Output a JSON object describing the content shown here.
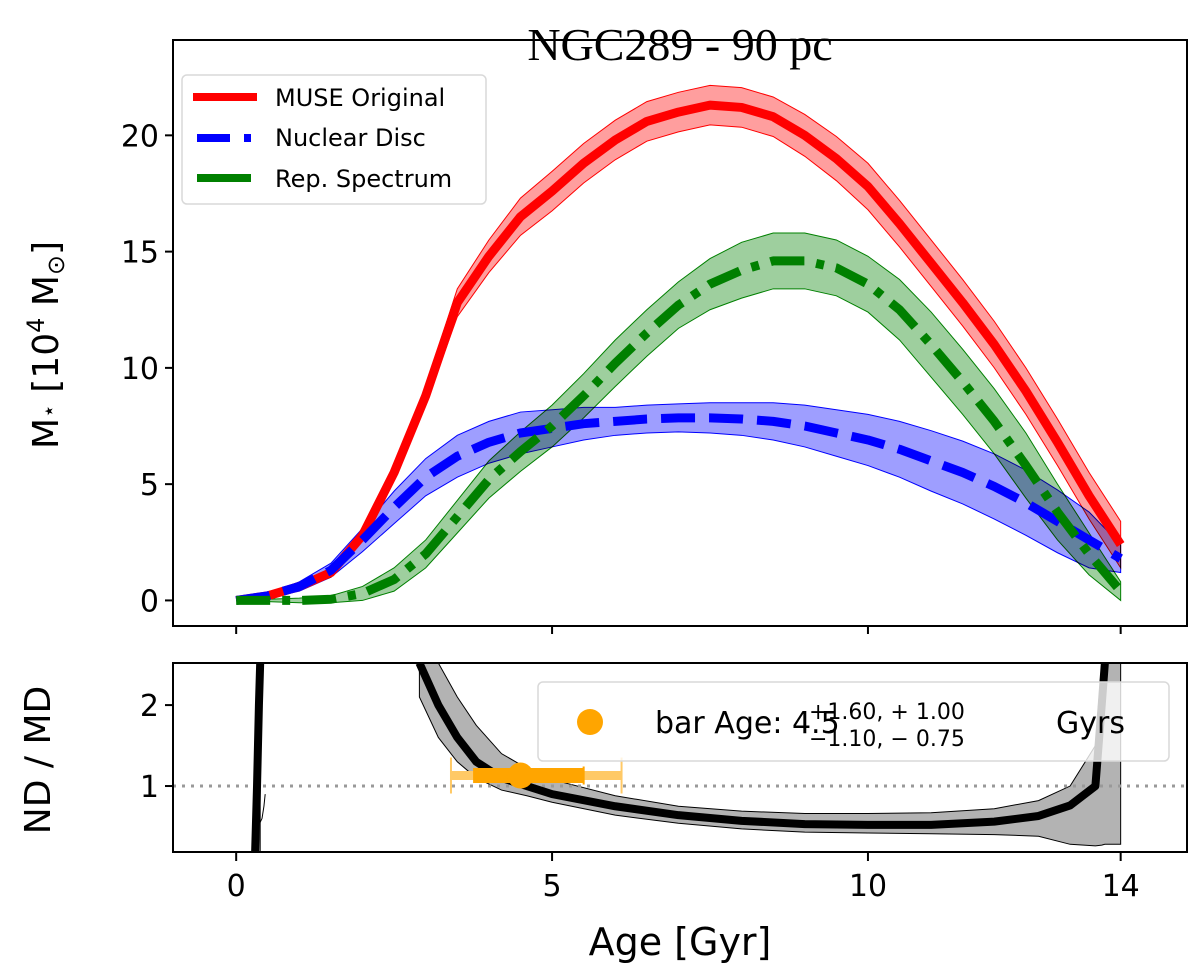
{
  "chart_data": [
    {
      "type": "line",
      "panel": "top",
      "title": "NGC289 - 90 pc",
      "xlabel": "",
      "ylabel": "M⋆ [10^4 M⊙]",
      "ylabel_parts": {
        "main": "M",
        "star": "⋆",
        "open": " [10",
        "exp": "4",
        "unit": " M",
        "sun": "⊙",
        "close": "]"
      },
      "xlim": [
        -1.0,
        15.05
      ],
      "ylim": [
        -1.1,
        24.1
      ],
      "yticks": [
        0,
        5,
        10,
        15,
        20
      ],
      "ytick_labels": [
        "0",
        "5",
        "10",
        "15",
        "20"
      ],
      "grid": false,
      "legend": {
        "placement": "top-left",
        "entries": [
          "MUSE Original",
          "Nuclear Disc",
          "Rep. Spectrum"
        ]
      },
      "x": [
        0,
        0.5,
        1,
        1.5,
        2,
        2.5,
        3,
        3.5,
        4,
        4.5,
        5,
        5.5,
        6,
        6.5,
        7,
        7.5,
        8,
        8.5,
        9,
        9.5,
        10,
        10.5,
        11,
        11.5,
        12,
        12.5,
        13,
        13.5,
        14
      ],
      "series": [
        {
          "name": "MUSE Original",
          "color": "#ff0000",
          "band_color": "#ff9999",
          "linestyle": "solid",
          "values": [
            0,
            0.2,
            0.6,
            1.2,
            2.8,
            5.5,
            8.8,
            12.8,
            14.8,
            16.5,
            17.6,
            18.8,
            19.8,
            20.6,
            21.0,
            21.3,
            21.2,
            20.8,
            20.0,
            19.0,
            17.8,
            16.2,
            14.5,
            12.8,
            11.0,
            9.0,
            6.8,
            4.5,
            2.4
          ],
          "err": [
            0,
            0.1,
            0.1,
            0.2,
            0.2,
            0.3,
            0.4,
            0.6,
            0.7,
            0.8,
            0.85,
            0.85,
            0.85,
            0.85,
            0.85,
            0.85,
            0.85,
            0.85,
            0.9,
            0.95,
            1.0,
            1.0,
            1.0,
            1.0,
            1.0,
            1.0,
            1.0,
            1.0,
            1.0
          ]
        },
        {
          "name": "Nuclear Disc",
          "color": "#0000ff",
          "band_color": "#9999ff",
          "linestyle": "dashed",
          "values": [
            0,
            0.2,
            0.6,
            1.3,
            2.6,
            4.0,
            5.3,
            6.2,
            6.8,
            7.2,
            7.4,
            7.6,
            7.7,
            7.8,
            7.85,
            7.85,
            7.8,
            7.7,
            7.5,
            7.2,
            6.9,
            6.5,
            6.0,
            5.5,
            4.9,
            4.2,
            3.4,
            2.6,
            1.8
          ],
          "err": [
            0,
            0.1,
            0.2,
            0.3,
            0.5,
            0.7,
            0.8,
            0.9,
            0.9,
            0.9,
            0.8,
            0.7,
            0.6,
            0.6,
            0.6,
            0.65,
            0.7,
            0.8,
            0.9,
            1.0,
            1.1,
            1.2,
            1.3,
            1.35,
            1.4,
            1.4,
            1.35,
            1.2,
            0.6
          ]
        },
        {
          "name": "Rep. Spectrum",
          "color": "#008000",
          "band_color": "#99cc99",
          "linestyle": "dashdot",
          "values": [
            0,
            0,
            0,
            0.05,
            0.3,
            0.9,
            2.0,
            3.6,
            5.2,
            6.4,
            7.5,
            8.8,
            10.2,
            11.5,
            12.7,
            13.6,
            14.2,
            14.6,
            14.6,
            14.3,
            13.6,
            12.5,
            11.0,
            9.4,
            7.7,
            5.8,
            3.8,
            2.0,
            0.4
          ],
          "err": [
            0,
            0.05,
            0.1,
            0.15,
            0.3,
            0.5,
            0.6,
            0.7,
            0.8,
            0.85,
            0.9,
            0.95,
            1.0,
            1.0,
            1.0,
            1.1,
            1.2,
            1.2,
            1.2,
            1.2,
            1.2,
            1.3,
            1.4,
            1.4,
            1.4,
            1.4,
            1.2,
            0.9,
            0.4
          ]
        }
      ]
    },
    {
      "type": "line",
      "panel": "bottom",
      "xlabel": "Age [Gyr]",
      "ylabel": "ND / MD",
      "xlim": [
        -1.0,
        15.05
      ],
      "ylim": [
        0.185,
        2.52
      ],
      "xticks": [
        0,
        5,
        10,
        14
      ],
      "xtick_labels": [
        "0",
        "5",
        "10",
        "14"
      ],
      "yticks": [
        1,
        2
      ],
      "ytick_labels": [
        "1",
        "2"
      ],
      "grid": false,
      "reference_line": {
        "y": 1,
        "color": "#999999",
        "linestyle": "dotted"
      },
      "ratio": {
        "name": "ND / MD",
        "color": "#000000",
        "band_color": "#b3b3b3",
        "segments": [
          {
            "x": [
              0.3,
              0.33,
              0.36,
              0.38
            ],
            "values": [
              0.185,
              1.0,
              2.0,
              2.52
            ],
            "lower": [
              0.185,
              0.185,
              0.185,
              0.185
            ],
            "upper": [
              0.8,
              1.6,
              2.4,
              2.52
            ],
            "lower_alt": [
              0.55,
              0.6,
              0.75,
              0.9
            ]
          },
          {
            "x": [
              2.9,
              3.2,
              3.5,
              3.8,
              4.2,
              4.6,
              5,
              6,
              7,
              8,
              9,
              10,
              11,
              12,
              12.7,
              13.2,
              13.6,
              13.7,
              13.75
            ],
            "values": [
              2.52,
              2.0,
              1.6,
              1.3,
              1.1,
              1.0,
              0.9,
              0.75,
              0.64,
              0.57,
              0.53,
              0.52,
              0.52,
              0.56,
              0.63,
              0.76,
              1.0,
              2.0,
              2.52
            ],
            "lower": [
              2.1,
              1.6,
              1.3,
              1.1,
              0.95,
              0.88,
              0.8,
              0.64,
              0.54,
              0.47,
              0.43,
              0.42,
              0.41,
              0.4,
              0.38,
              0.28,
              0.26,
              0.27,
              0.28
            ],
            "upper": [
              2.52,
              2.52,
              2.1,
              1.75,
              1.4,
              1.22,
              1.08,
              0.88,
              0.75,
              0.69,
              0.66,
              0.66,
              0.67,
              0.72,
              0.82,
              1.0,
              1.5,
              2.52,
              2.52
            ]
          }
        ],
        "band_right_x": 14.0
      },
      "bar_age": {
        "label": "bar Age: ",
        "value": 4.5,
        "value_label": "4.5",
        "y": 1.13,
        "err_outer_plus": 1.6,
        "err_outer_minus": 1.1,
        "err_inner_plus": 1.0,
        "err_inner_minus": 0.75,
        "sup_label": "+1.60, + 1.00",
        "sub_label": "−1.10, − 0.75",
        "unit": "Gyrs",
        "color": "#ffa500",
        "outer_color": "#ffc966"
      },
      "legend": {
        "placement": "top-right"
      }
    }
  ]
}
